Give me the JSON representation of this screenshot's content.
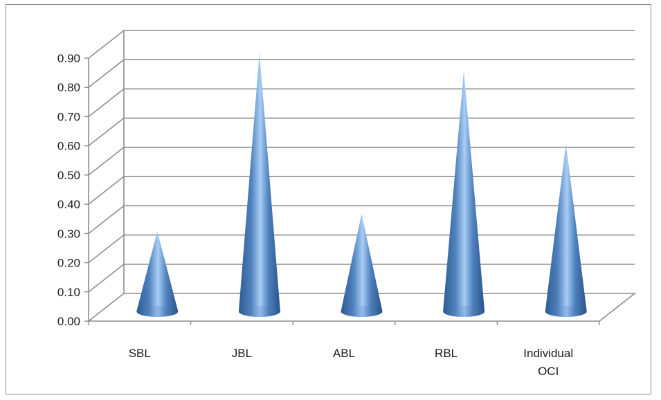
{
  "chart_data": {
    "type": "bar",
    "style": "3d-cone",
    "categories": [
      [
        "SBL"
      ],
      [
        "JBL"
      ],
      [
        "ABL"
      ],
      [
        "RBL"
      ],
      [
        "Individual",
        "OCI"
      ]
    ],
    "values": [
      0.26,
      0.87,
      0.32,
      0.81,
      0.56
    ],
    "ylim": [
      0,
      0.9
    ],
    "yticks": [
      "0.00",
      "0.10",
      "0.20",
      "0.30",
      "0.40",
      "0.50",
      "0.60",
      "0.70",
      "0.80",
      "0.90"
    ],
    "grid": true,
    "legend": "none",
    "colors": {
      "cone_dark": "#2e5b93",
      "cone_mid": "#4f81bd",
      "cone_light": "#a8cdf5",
      "gridline": "#8c8c8c",
      "axis": "#8c8c8c"
    }
  }
}
